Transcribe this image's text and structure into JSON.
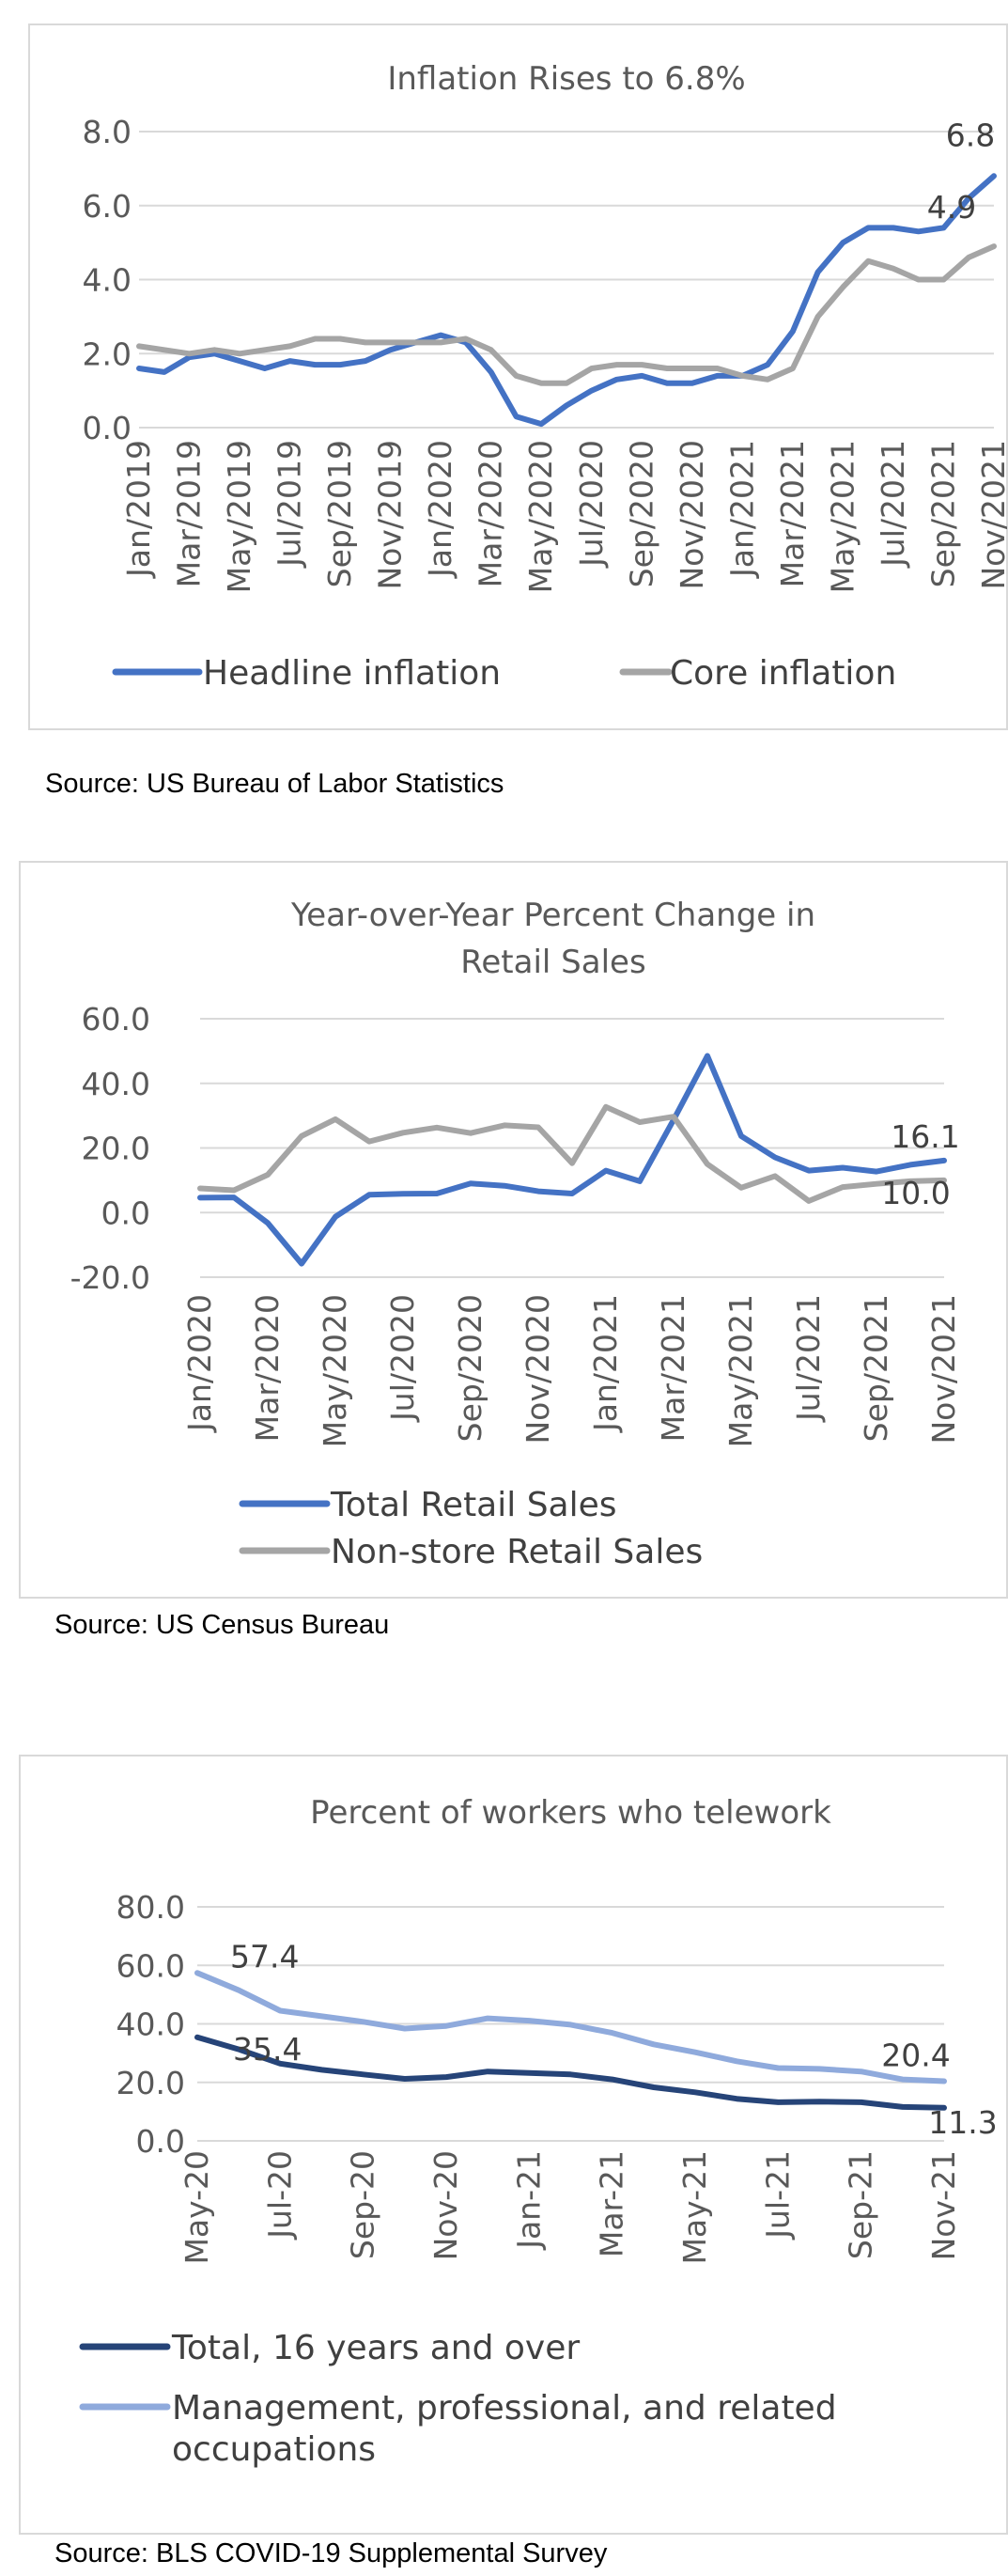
{
  "colors": {
    "headline": "#4472c4",
    "core": "#a5a5a5",
    "total_retail": "#4472c4",
    "nonstore": "#a5a5a5",
    "total_telework": "#264478",
    "mgmt_telework": "#8faadc",
    "grid": "#d9d9d9",
    "text": "#595959"
  },
  "sources": [
    "Source: US Bureau of Labor Statistics",
    "Source: US Census Bureau",
    "Source: BLS COVID-19 Supplemental Survey"
  ],
  "chart_data": [
    {
      "type": "line",
      "title": "Inflation Rises to 6.8%",
      "ylim": [
        0,
        8
      ],
      "yticks": [
        "0.0",
        "2.0",
        "4.0",
        "6.0",
        "8.0"
      ],
      "ytick_values": [
        0,
        2,
        4,
        6,
        8
      ],
      "x": [
        "Jan/2019",
        "Feb/2019",
        "Mar/2019",
        "Apr/2019",
        "May/2019",
        "Jun/2019",
        "Jul/2019",
        "Aug/2019",
        "Sep/2019",
        "Oct/2019",
        "Nov/2019",
        "Dec/2019",
        "Jan/2020",
        "Feb/2020",
        "Mar/2020",
        "Apr/2020",
        "May/2020",
        "Jun/2020",
        "Jul/2020",
        "Aug/2020",
        "Sep/2020",
        "Oct/2020",
        "Nov/2020",
        "Dec/2020",
        "Jan/2021",
        "Feb/2021",
        "Mar/2021",
        "Apr/2021",
        "May/2021",
        "Jun/2021",
        "Jul/2021",
        "Aug/2021",
        "Sep/2021",
        "Oct/2021",
        "Nov/2021"
      ],
      "xtick_labels": [
        "Jan/2019",
        "Mar/2019",
        "May/2019",
        "Jul/2019",
        "Sep/2019",
        "Nov/2019",
        "Jan/2020",
        "Mar/2020",
        "May/2020",
        "Jul/2020",
        "Sep/2020",
        "Nov/2020",
        "Jan/2021",
        "Mar/2021",
        "May/2021",
        "Jul/2021",
        "Sep/2021",
        "Nov/2021"
      ],
      "series": [
        {
          "name": "Headline inflation",
          "values": [
            1.6,
            1.5,
            1.9,
            2.0,
            1.8,
            1.6,
            1.8,
            1.7,
            1.7,
            1.8,
            2.1,
            2.3,
            2.5,
            2.3,
            1.5,
            0.3,
            0.1,
            0.6,
            1.0,
            1.3,
            1.4,
            1.2,
            1.2,
            1.4,
            1.4,
            1.7,
            2.6,
            4.2,
            5.0,
            5.4,
            5.4,
            5.3,
            5.4,
            6.2,
            6.8
          ]
        },
        {
          "name": "Core inflation",
          "values": [
            2.2,
            2.1,
            2.0,
            2.1,
            2.0,
            2.1,
            2.2,
            2.4,
            2.4,
            2.3,
            2.3,
            2.3,
            2.3,
            2.4,
            2.1,
            1.4,
            1.2,
            1.2,
            1.6,
            1.7,
            1.7,
            1.6,
            1.6,
            1.6,
            1.4,
            1.3,
            1.6,
            3.0,
            3.8,
            4.5,
            4.3,
            4.0,
            4.0,
            4.6,
            4.9
          ]
        }
      ],
      "end_labels": [
        "6.8",
        "4.9"
      ]
    },
    {
      "type": "line",
      "title": "Year-over-Year Percent Change in Retail Sales",
      "title_lines": [
        "Year-over-Year Percent Change in",
        "Retail Sales"
      ],
      "ylim": [
        -20,
        60
      ],
      "yticks": [
        "-20.0",
        "0.0",
        "20.0",
        "40.0",
        "60.0"
      ],
      "ytick_values": [
        -20,
        0,
        20,
        40,
        60
      ],
      "x": [
        "Jan/2020",
        "Feb/2020",
        "Mar/2020",
        "Apr/2020",
        "May/2020",
        "Jun/2020",
        "Jul/2020",
        "Aug/2020",
        "Sep/2020",
        "Oct/2020",
        "Nov/2020",
        "Dec/2020",
        "Jan/2021",
        "Feb/2021",
        "Mar/2021",
        "Apr/2021",
        "May/2021",
        "Jun/2021",
        "Jul/2021",
        "Aug/2021",
        "Sep/2021",
        "Oct/2021",
        "Nov/2021"
      ],
      "xtick_labels": [
        "Jan/2020",
        "Mar/2020",
        "May/2020",
        "Jul/2020",
        "Sep/2020",
        "Nov/2020",
        "Jan/2021",
        "Mar/2021",
        "May/2021",
        "Jul/2021",
        "Sep/2021",
        "Nov/2021"
      ],
      "series": [
        {
          "name": "Total Retail Sales",
          "values": [
            4.6,
            4.7,
            -3.2,
            -15.8,
            -1.3,
            5.5,
            5.8,
            5.9,
            9.0,
            8.3,
            6.6,
            5.9,
            13.0,
            9.7,
            28.7,
            48.5,
            23.7,
            17.1,
            13.0,
            13.9,
            12.7,
            14.8,
            16.1
          ]
        },
        {
          "name": "Non-store Retail Sales",
          "values": [
            7.5,
            6.9,
            11.7,
            23.7,
            28.9,
            22.0,
            24.7,
            26.3,
            24.6,
            27.0,
            26.4,
            15.3,
            32.7,
            28.0,
            29.7,
            15.0,
            7.7,
            11.3,
            3.6,
            7.9,
            8.9,
            9.7,
            10.0
          ]
        }
      ],
      "end_labels": [
        "16.1",
        "10.0"
      ]
    },
    {
      "type": "line",
      "title": "Percent of workers who telework",
      "ylim": [
        0,
        80
      ],
      "yticks": [
        "0.0",
        "20.0",
        "40.0",
        "60.0",
        "80.0"
      ],
      "ytick_values": [
        0,
        20,
        40,
        60,
        80
      ],
      "x": [
        "May-20",
        "Jun-20",
        "Jul-20",
        "Aug-20",
        "Sep-20",
        "Oct-20",
        "Nov-20",
        "Dec-20",
        "Jan-21",
        "Feb-21",
        "Mar-21",
        "Apr-21",
        "May-21",
        "Jun-21",
        "Jul-21",
        "Aug-21",
        "Sep-21",
        "Oct-21",
        "Nov-21"
      ],
      "xtick_labels": [
        "May-20",
        "Jul-20",
        "Sep-20",
        "Nov-20",
        "Jan-21",
        "Mar-21",
        "May-21",
        "Jul-21",
        "Sep-21",
        "Nov-21"
      ],
      "series": [
        {
          "name": "Total, 16 years and over",
          "values": [
            35.4,
            31.3,
            26.4,
            24.3,
            22.7,
            21.2,
            21.8,
            23.7,
            23.2,
            22.7,
            21.0,
            18.3,
            16.6,
            14.4,
            13.2,
            13.4,
            13.2,
            11.6,
            11.3
          ]
        },
        {
          "name": "Management, professional, and related occupations",
          "name_lines": [
            "Management, professional, and related",
            "occupations"
          ],
          "values": [
            57.4,
            51.5,
            44.5,
            42.6,
            40.7,
            38.4,
            39.3,
            41.9,
            41.1,
            39.7,
            36.9,
            33.0,
            30.3,
            27.2,
            24.9,
            24.6,
            23.7,
            21.0,
            20.4
          ]
        }
      ],
      "start_labels": [
        "35.4",
        "57.4"
      ],
      "end_labels": [
        "11.3",
        "20.4"
      ]
    }
  ]
}
